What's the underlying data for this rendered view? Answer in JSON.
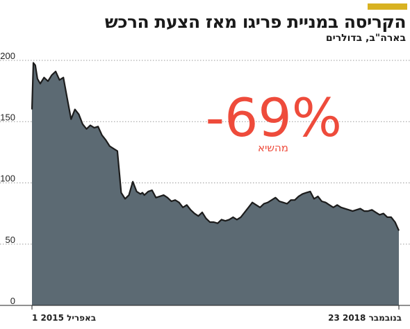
{
  "header": {
    "title": "הקריסה במניית פריגו מאז הצעת הרכש",
    "subtitle": "בארה\"ב, בדולרים"
  },
  "annotation": {
    "value": "-69%",
    "caption": "מהשיא"
  },
  "colors": {
    "accent": "#d8b221",
    "area_fill": "#5c6a73",
    "line": "#1c1c1c",
    "annotation": "#ee4b3b",
    "grid": "#9a9a9a"
  },
  "chart_data": {
    "type": "area",
    "title": "הקריסה במניית פריגו מאז הצעת הרכש",
    "subtitle": "בארה\"ב, בדולרים",
    "x_start_label": "1 באפריל 2015",
    "x_end_label": "23 בנובמבר 2018",
    "y_ticks": [
      0,
      50,
      100,
      150,
      200
    ],
    "ylim": [
      0,
      200
    ],
    "grid": "horizontal dotted",
    "x": [
      "2015-04-01",
      "2015-04-06",
      "2015-04-13",
      "2015-04-21",
      "2015-05-01",
      "2015-05-15",
      "2015-05-29",
      "2015-06-12",
      "2015-06-26",
      "2015-07-10",
      "2015-07-24",
      "2015-08-07",
      "2015-08-21",
      "2015-09-04",
      "2015-09-18",
      "2015-10-02",
      "2015-10-16",
      "2015-10-30",
      "2015-11-13",
      "2015-11-27",
      "2015-12-11",
      "2015-12-25",
      "2016-01-08",
      "2016-01-22",
      "2016-02-05",
      "2016-02-19",
      "2016-03-04",
      "2016-03-18",
      "2016-04-01",
      "2016-04-15",
      "2016-04-29",
      "2016-05-06",
      "2016-05-13",
      "2016-05-27",
      "2016-06-10",
      "2016-06-24",
      "2016-07-08",
      "2016-07-22",
      "2016-08-05",
      "2016-08-19",
      "2016-09-02",
      "2016-09-16",
      "2016-09-30",
      "2016-10-14",
      "2016-10-28",
      "2016-11-11",
      "2016-11-25",
      "2016-12-09",
      "2016-12-23",
      "2017-01-06",
      "2017-01-20",
      "2017-02-03",
      "2017-02-17",
      "2017-03-03",
      "2017-03-17",
      "2017-03-31",
      "2017-04-14",
      "2017-04-28",
      "2017-05-12",
      "2017-05-26",
      "2017-06-09",
      "2017-06-23",
      "2017-07-07",
      "2017-07-21",
      "2017-08-04",
      "2017-08-18",
      "2017-09-01",
      "2017-09-15",
      "2017-09-29",
      "2017-10-13",
      "2017-10-27",
      "2017-11-10",
      "2017-11-24",
      "2017-12-08",
      "2017-12-22",
      "2018-01-05",
      "2018-01-19",
      "2018-02-02",
      "2018-02-16",
      "2018-03-02",
      "2018-03-16",
      "2018-03-30",
      "2018-04-13",
      "2018-04-27",
      "2018-05-11",
      "2018-05-25",
      "2018-06-08",
      "2018-06-22",
      "2018-07-06",
      "2018-07-20",
      "2018-08-03",
      "2018-08-17",
      "2018-08-31",
      "2018-09-14",
      "2018-09-28",
      "2018-10-12",
      "2018-10-26",
      "2018-11-09",
      "2018-11-23"
    ],
    "series": [
      {
        "values": [
          160,
          198,
          196,
          185,
          181,
          186,
          183,
          188,
          191,
          184,
          186,
          169,
          152,
          160,
          156,
          148,
          144,
          147,
          145,
          146,
          139,
          135,
          130,
          128,
          126,
          92,
          87,
          90,
          101,
          93,
          91,
          92,
          90,
          93,
          94,
          88,
          89,
          90,
          88,
          85,
          86,
          84,
          80,
          82,
          78,
          75,
          73,
          76,
          71,
          68,
          68,
          67,
          70,
          69,
          70,
          72,
          70,
          72,
          76,
          80,
          84,
          82,
          80,
          83,
          84,
          86,
          88,
          85,
          84,
          83,
          86,
          86,
          89,
          91,
          92,
          93,
          87,
          89,
          85,
          84,
          82,
          80,
          82,
          80,
          79,
          78,
          77,
          78,
          79,
          77,
          77,
          78,
          76,
          74,
          75,
          72,
          72,
          68,
          61
        ]
      }
    ]
  }
}
